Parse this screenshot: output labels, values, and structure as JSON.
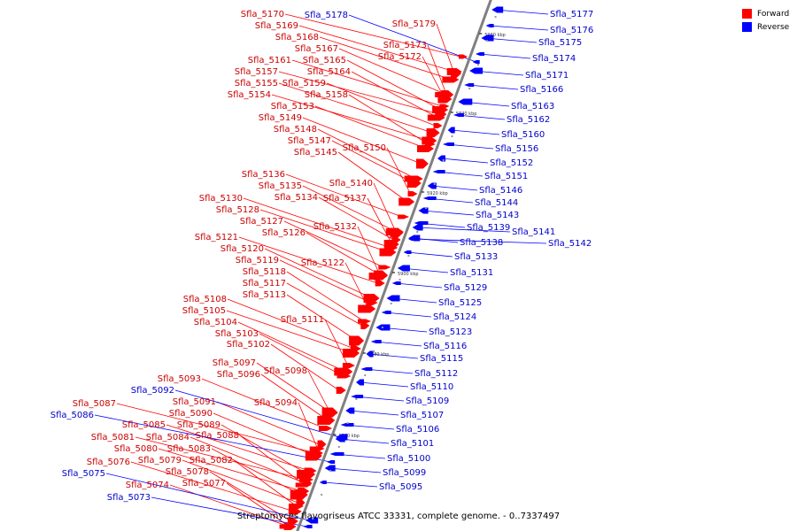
{
  "caption": "Streptomyces flavogriseus ATCC 33331, complete genome. - 0..7337497",
  "legend": [
    {
      "label": "Forward",
      "color": "#ff0000"
    },
    {
      "label": "Reverse",
      "color": "#0000ff"
    }
  ],
  "colors": {
    "forward": "#ff0000",
    "reverse": "#0000ff",
    "axis": "#808080",
    "forward_text": "#cc0000",
    "reverse_text": "#0000cc"
  },
  "scale_ticks": [
    "5960 kbp",
    "5940 kbp",
    "5920 kbp",
    "5900 kbp",
    "5880 kbp",
    "5860 kbp"
  ],
  "forward_genes": [
    "Sfla_5170",
    "Sfla_5169",
    "Sfla_5179",
    "Sfla_5168",
    "Sfla_5167",
    "Sfla_5173",
    "Sfla_5172",
    "Sfla_5161",
    "Sfla_5165",
    "Sfla_5157",
    "Sfla_5164",
    "Sfla_5155",
    "Sfla_5159",
    "Sfla_5154",
    "Sfla_5158",
    "Sfla_5153",
    "Sfla_5149",
    "Sfla_5148",
    "Sfla_5147",
    "Sfla_5150",
    "Sfla_5145",
    "Sfla_5136",
    "Sfla_5135",
    "Sfla_5140",
    "Sfla_5134",
    "Sfla_5137",
    "Sfla_5130",
    "Sfla_5128",
    "Sfla_5127",
    "Sfla_5132",
    "Sfla_5126",
    "Sfla_5121",
    "Sfla_5120",
    "Sfla_5119",
    "Sfla_5122",
    "Sfla_5118",
    "Sfla_5117",
    "Sfla_5113",
    "Sfla_5108",
    "Sfla_5105",
    "Sfla_5111",
    "Sfla_5104",
    "Sfla_5103",
    "Sfla_5102",
    "Sfla_5097",
    "Sfla_5098",
    "Sfla_5096",
    "Sfla_5093",
    "Sfla_5091",
    "Sfla_5094",
    "Sfla_5087",
    "Sfla_5090",
    "Sfla_5085",
    "Sfla_5089",
    "Sfla_5081",
    "Sfla_5084",
    "Sfla_5088",
    "Sfla_5080",
    "Sfla_5083",
    "Sfla_5076",
    "Sfla_5079",
    "Sfla_5082",
    "Sfla_5078",
    "Sfla_5074",
    "Sfla_5077"
  ],
  "reverse_genes": [
    "Sfla_5178",
    "Sfla_5177",
    "Sfla_5176",
    "Sfla_5175",
    "Sfla_5174",
    "Sfla_5171",
    "Sfla_5166",
    "Sfla_5163",
    "Sfla_5162",
    "Sfla_5160",
    "Sfla_5156",
    "Sfla_5152",
    "Sfla_5151",
    "Sfla_5146",
    "Sfla_5144",
    "Sfla_5143",
    "Sfla_5139",
    "Sfla_5141",
    "Sfla_5142",
    "Sfla_5138",
    "Sfla_5133",
    "Sfla_5131",
    "Sfla_5129",
    "Sfla_5125",
    "Sfla_5124",
    "Sfla_5123",
    "Sfla_5116",
    "Sfla_5115",
    "Sfla_5112",
    "Sfla_5110",
    "Sfla_5109",
    "Sfla_5107",
    "Sfla_5106",
    "Sfla_5101",
    "Sfla_5100",
    "Sfla_5099",
    "Sfla_5095",
    "Sfla_5092",
    "Sfla_5086",
    "Sfla_5075",
    "Sfla_5073"
  ]
}
